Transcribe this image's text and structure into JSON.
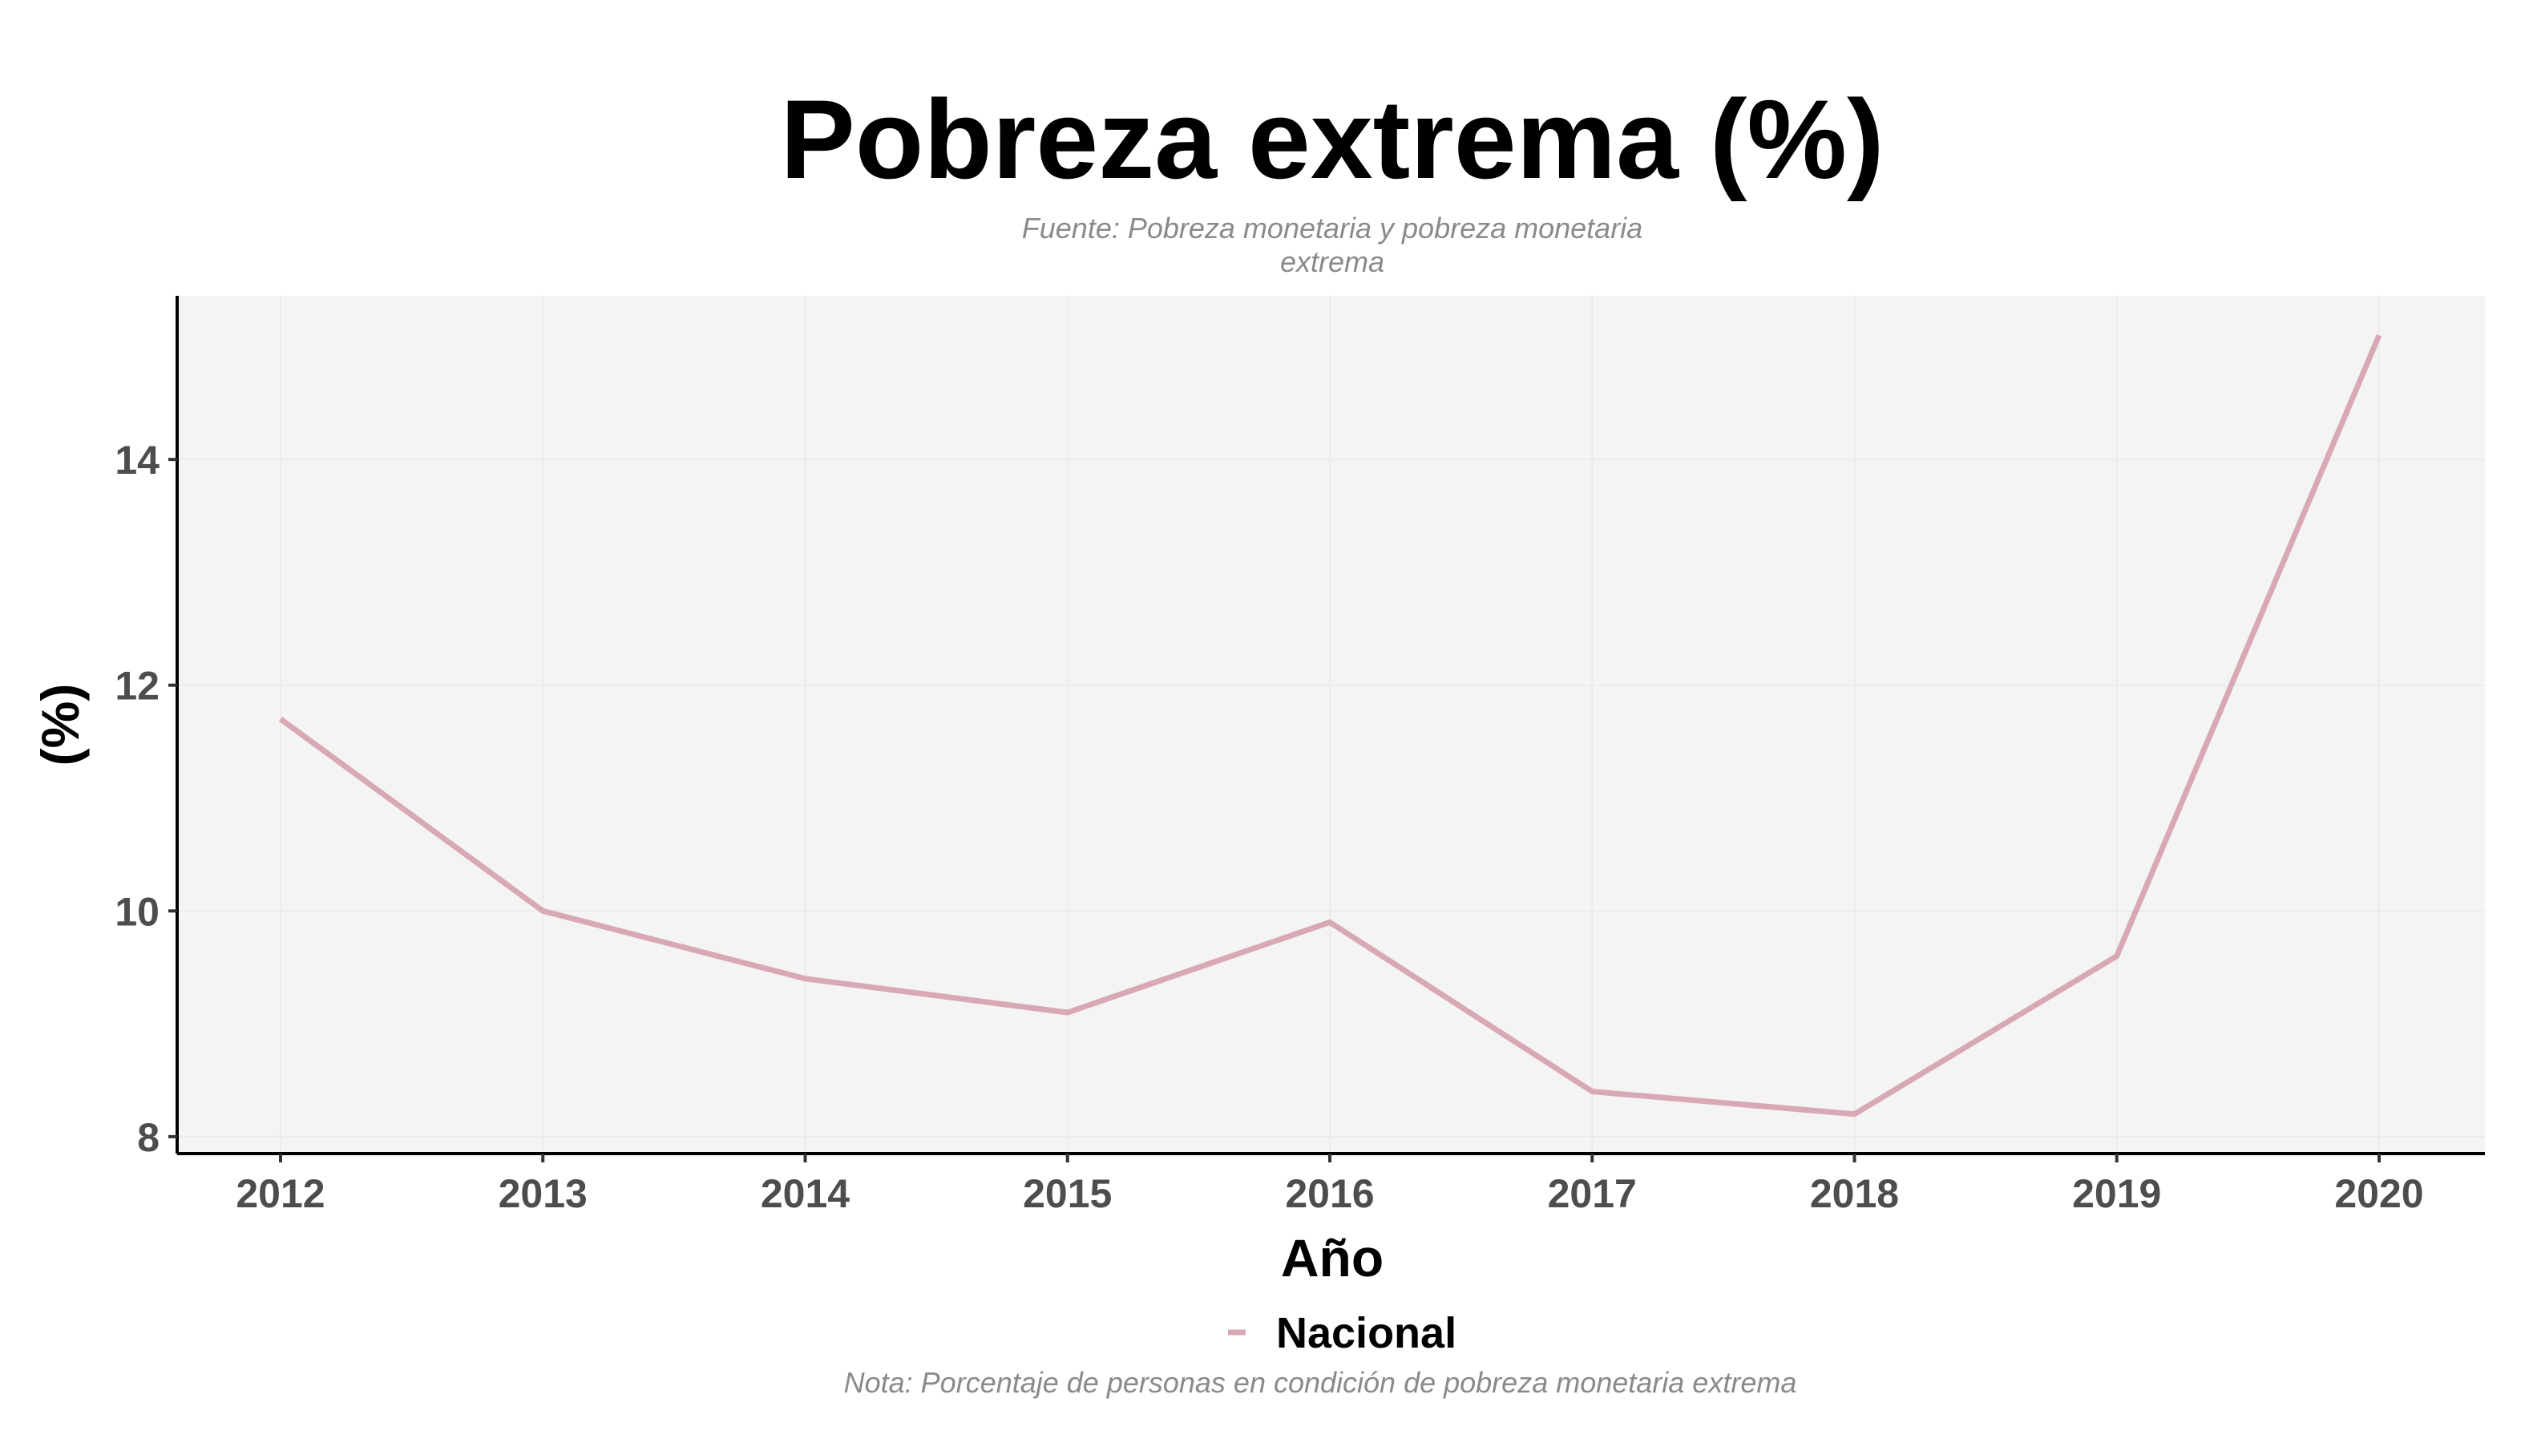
{
  "chart_data": {
    "type": "line",
    "title": "Pobreza extrema (%)",
    "subtitle_lines": [
      "Fuente: Pobreza monetaria y pobreza monetaria",
      "extrema"
    ],
    "xlabel": "Año",
    "ylabel": "(%)",
    "caption": "Nota: Porcentaje de personas en condición de pobreza monetaria extrema",
    "x": [
      "2012",
      "2013",
      "2014",
      "2015",
      "2016",
      "2017",
      "2018",
      "2019",
      "2020"
    ],
    "series": [
      {
        "name": "Nacional",
        "values": [
          11.7,
          10.0,
          9.4,
          9.1,
          9.9,
          8.4,
          8.2,
          9.6,
          15.1
        ],
        "color": "#d8a9b4"
      }
    ],
    "yticks": [
      "8",
      "10",
      "12",
      "14"
    ],
    "ylim": [
      7.85,
      15.45
    ],
    "grid": true,
    "legend_position": "bottom",
    "panel_background": "#f4f4f4"
  }
}
